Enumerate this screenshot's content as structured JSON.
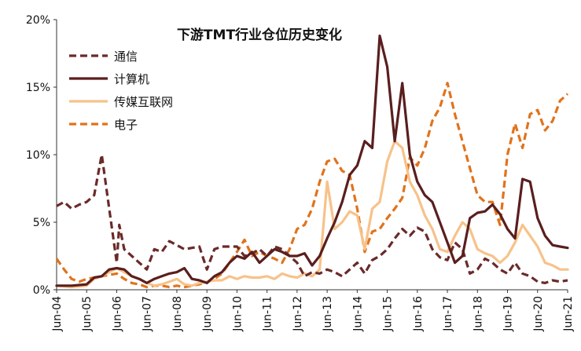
{
  "chart_data": {
    "type": "line",
    "title": "下游TMT行业仓位历史变化",
    "xlabel": "",
    "ylabel": "",
    "x_start": "2004-06",
    "x_end": "2021-06",
    "x_ticks": [
      "Jun-04",
      "Jun-05",
      "Jun-06",
      "Jun-07",
      "Jun-08",
      "Jun-09",
      "Jun-10",
      "Jun-11",
      "Jun-12",
      "Jun-13",
      "Jun-14",
      "Jun-15",
      "Jun-16",
      "Jun-17",
      "Jun-18",
      "Jun-19",
      "Jun-20",
      "Jun-21"
    ],
    "y_ticks": [
      "0%",
      "5%",
      "10%",
      "15%",
      "20%"
    ],
    "ylim": [
      0,
      20
    ],
    "legend_position": "top-left",
    "grid": false,
    "series": [
      {
        "name": "通信",
        "style": "dashed",
        "color": "#6b2a2a",
        "points": [
          [
            "2004-06",
            6.2
          ],
          [
            "2004-09",
            6.5
          ],
          [
            "2004-12",
            6.0
          ],
          [
            "2005-03",
            6.3
          ],
          [
            "2005-06",
            6.5
          ],
          [
            "2005-09",
            7.0
          ],
          [
            "2005-12",
            10.0
          ],
          [
            "2006-03",
            6.0
          ],
          [
            "2006-06",
            2.0
          ],
          [
            "2006-07",
            4.8
          ],
          [
            "2006-09",
            3.0
          ],
          [
            "2006-12",
            2.5
          ],
          [
            "2007-03",
            2.0
          ],
          [
            "2007-06",
            1.5
          ],
          [
            "2007-09",
            3.0
          ],
          [
            "2007-12",
            2.8
          ],
          [
            "2008-03",
            3.6
          ],
          [
            "2008-06",
            3.3
          ],
          [
            "2008-09",
            3.0
          ],
          [
            "2008-12",
            3.1
          ],
          [
            "2009-03",
            3.2
          ],
          [
            "2009-06",
            1.5
          ],
          [
            "2009-09",
            3.0
          ],
          [
            "2009-12",
            3.2
          ],
          [
            "2010-03",
            3.2
          ],
          [
            "2010-06",
            3.2
          ],
          [
            "2010-09",
            2.5
          ],
          [
            "2010-12",
            2.7
          ],
          [
            "2011-03",
            3.0
          ],
          [
            "2011-06",
            2.5
          ],
          [
            "2011-09",
            3.2
          ],
          [
            "2011-12",
            3.0
          ],
          [
            "2012-03",
            2.5
          ],
          [
            "2012-06",
            2.0
          ],
          [
            "2012-09",
            1.0
          ],
          [
            "2012-12",
            1.3
          ],
          [
            "2013-03",
            1.2
          ],
          [
            "2013-06",
            1.5
          ],
          [
            "2013-09",
            1.3
          ],
          [
            "2013-12",
            1.0
          ],
          [
            "2014-03",
            1.5
          ],
          [
            "2014-06",
            2.0
          ],
          [
            "2014-09",
            1.2
          ],
          [
            "2014-12",
            2.2
          ],
          [
            "2015-03",
            2.5
          ],
          [
            "2015-06",
            3.0
          ],
          [
            "2015-09",
            3.8
          ],
          [
            "2015-12",
            4.5
          ],
          [
            "2016-03",
            4.0
          ],
          [
            "2016-06",
            4.6
          ],
          [
            "2016-09",
            4.3
          ],
          [
            "2016-12",
            3.0
          ],
          [
            "2017-03",
            2.4
          ],
          [
            "2017-06",
            2.2
          ],
          [
            "2017-09",
            3.5
          ],
          [
            "2017-12",
            3.0
          ],
          [
            "2018-03",
            1.2
          ],
          [
            "2018-06",
            1.5
          ],
          [
            "2018-09",
            2.3
          ],
          [
            "2018-12",
            2.0
          ],
          [
            "2019-03",
            1.5
          ],
          [
            "2019-06",
            1.2
          ],
          [
            "2019-09",
            2.0
          ],
          [
            "2019-12",
            1.2
          ],
          [
            "2020-03",
            1.0
          ],
          [
            "2020-06",
            0.6
          ],
          [
            "2020-09",
            0.5
          ],
          [
            "2020-12",
            0.7
          ],
          [
            "2021-03",
            0.6
          ],
          [
            "2021-06",
            0.7
          ]
        ]
      },
      {
        "name": "计算机",
        "style": "solid",
        "color": "#5a1e1e",
        "points": [
          [
            "2004-06",
            0.3
          ],
          [
            "2004-12",
            0.3
          ],
          [
            "2005-06",
            0.4
          ],
          [
            "2005-09",
            0.9
          ],
          [
            "2005-12",
            1.0
          ],
          [
            "2006-03",
            1.5
          ],
          [
            "2006-06",
            1.6
          ],
          [
            "2006-09",
            1.5
          ],
          [
            "2006-12",
            1.0
          ],
          [
            "2007-03",
            0.8
          ],
          [
            "2007-06",
            0.5
          ],
          [
            "2007-09",
            0.8
          ],
          [
            "2007-12",
            1.0
          ],
          [
            "2008-03",
            1.2
          ],
          [
            "2008-06",
            1.3
          ],
          [
            "2008-09",
            1.6
          ],
          [
            "2008-12",
            0.8
          ],
          [
            "2009-03",
            0.7
          ],
          [
            "2009-06",
            0.5
          ],
          [
            "2009-09",
            1.0
          ],
          [
            "2009-12",
            1.3
          ],
          [
            "2010-03",
            2.0
          ],
          [
            "2010-06",
            2.5
          ],
          [
            "2010-09",
            2.3
          ],
          [
            "2010-12",
            2.8
          ],
          [
            "2011-03",
            2.0
          ],
          [
            "2011-06",
            2.5
          ],
          [
            "2011-09",
            3.0
          ],
          [
            "2011-12",
            2.8
          ],
          [
            "2012-03",
            2.5
          ],
          [
            "2012-06",
            2.5
          ],
          [
            "2012-09",
            2.7
          ],
          [
            "2012-12",
            1.8
          ],
          [
            "2013-03",
            2.5
          ],
          [
            "2013-06",
            3.8
          ],
          [
            "2013-09",
            5.0
          ],
          [
            "2013-12",
            6.5
          ],
          [
            "2014-03",
            8.5
          ],
          [
            "2014-06",
            9.2
          ],
          [
            "2014-09",
            11.0
          ],
          [
            "2014-12",
            10.5
          ],
          [
            "2015-03",
            18.8
          ],
          [
            "2015-06",
            16.5
          ],
          [
            "2015-09",
            11.0
          ],
          [
            "2015-12",
            15.3
          ],
          [
            "2016-03",
            10.0
          ],
          [
            "2016-06",
            8.0
          ],
          [
            "2016-09",
            7.0
          ],
          [
            "2016-12",
            6.5
          ],
          [
            "2017-03",
            5.0
          ],
          [
            "2017-06",
            3.5
          ],
          [
            "2017-09",
            2.0
          ],
          [
            "2017-12",
            2.5
          ],
          [
            "2018-03",
            5.3
          ],
          [
            "2018-06",
            5.7
          ],
          [
            "2018-09",
            5.8
          ],
          [
            "2018-12",
            6.3
          ],
          [
            "2019-03",
            5.6
          ],
          [
            "2019-06",
            4.5
          ],
          [
            "2019-09",
            3.8
          ],
          [
            "2019-12",
            8.2
          ],
          [
            "2020-03",
            8.0
          ],
          [
            "2020-06",
            5.3
          ],
          [
            "2020-09",
            4.0
          ],
          [
            "2020-12",
            3.3
          ],
          [
            "2021-03",
            3.2
          ],
          [
            "2021-06",
            3.1
          ]
        ]
      },
      {
        "name": "传媒互联网",
        "style": "solid",
        "color": "#f7c28a",
        "points": [
          [
            "2004-06",
            0.3
          ],
          [
            "2004-12",
            0.2
          ],
          [
            "2005-06",
            0.3
          ],
          [
            "2005-09",
            0.8
          ],
          [
            "2005-12",
            1.0
          ],
          [
            "2006-03",
            1.3
          ],
          [
            "2006-06",
            1.6
          ],
          [
            "2006-09",
            1.3
          ],
          [
            "2006-12",
            1.0
          ],
          [
            "2007-03",
            0.8
          ],
          [
            "2007-06",
            0.5
          ],
          [
            "2007-09",
            0.3
          ],
          [
            "2007-12",
            0.4
          ],
          [
            "2008-03",
            0.6
          ],
          [
            "2008-06",
            0.8
          ],
          [
            "2008-09",
            0.4
          ],
          [
            "2008-12",
            0.3
          ],
          [
            "2009-03",
            0.5
          ],
          [
            "2009-06",
            0.6
          ],
          [
            "2009-09",
            0.7
          ],
          [
            "2009-12",
            0.7
          ],
          [
            "2010-03",
            1.0
          ],
          [
            "2010-06",
            0.8
          ],
          [
            "2010-09",
            1.0
          ],
          [
            "2010-12",
            0.9
          ],
          [
            "2011-03",
            0.9
          ],
          [
            "2011-06",
            1.0
          ],
          [
            "2011-09",
            0.8
          ],
          [
            "2011-12",
            1.2
          ],
          [
            "2012-03",
            1.0
          ],
          [
            "2012-06",
            0.9
          ],
          [
            "2012-09",
            1.2
          ],
          [
            "2012-12",
            1.0
          ],
          [
            "2013-03",
            1.5
          ],
          [
            "2013-06",
            8.0
          ],
          [
            "2013-09",
            4.5
          ],
          [
            "2013-12",
            5.0
          ],
          [
            "2014-03",
            5.8
          ],
          [
            "2014-06",
            5.5
          ],
          [
            "2014-09",
            3.0
          ],
          [
            "2014-12",
            6.0
          ],
          [
            "2015-03",
            6.5
          ],
          [
            "2015-06",
            9.5
          ],
          [
            "2015-09",
            11.0
          ],
          [
            "2015-12",
            10.5
          ],
          [
            "2016-03",
            8.0
          ],
          [
            "2016-06",
            7.0
          ],
          [
            "2016-09",
            5.5
          ],
          [
            "2016-12",
            4.5
          ],
          [
            "2017-03",
            3.0
          ],
          [
            "2017-06",
            2.8
          ],
          [
            "2017-09",
            4.0
          ],
          [
            "2017-12",
            5.0
          ],
          [
            "2018-03",
            4.5
          ],
          [
            "2018-06",
            3.0
          ],
          [
            "2018-09",
            2.7
          ],
          [
            "2018-12",
            2.5
          ],
          [
            "2019-03",
            2.0
          ],
          [
            "2019-06",
            2.5
          ],
          [
            "2019-09",
            3.5
          ],
          [
            "2019-12",
            4.8
          ],
          [
            "2020-03",
            4.0
          ],
          [
            "2020-06",
            3.2
          ],
          [
            "2020-09",
            2.0
          ],
          [
            "2020-12",
            1.8
          ],
          [
            "2021-03",
            1.5
          ],
          [
            "2021-06",
            1.5
          ]
        ]
      },
      {
        "name": "电子",
        "style": "dashed",
        "color": "#e0731c",
        "points": [
          [
            "2004-06",
            2.3
          ],
          [
            "2004-09",
            1.5
          ],
          [
            "2004-12",
            0.8
          ],
          [
            "2005-03",
            0.6
          ],
          [
            "2005-06",
            0.8
          ],
          [
            "2005-09",
            0.9
          ],
          [
            "2005-12",
            1.0
          ],
          [
            "2006-03",
            1.1
          ],
          [
            "2006-06",
            1.2
          ],
          [
            "2006-09",
            0.8
          ],
          [
            "2006-12",
            0.5
          ],
          [
            "2007-03",
            0.4
          ],
          [
            "2007-06",
            0.2
          ],
          [
            "2007-09",
            0.3
          ],
          [
            "2007-12",
            0.3
          ],
          [
            "2008-03",
            0.2
          ],
          [
            "2008-06",
            0.3
          ],
          [
            "2008-09",
            0.2
          ],
          [
            "2008-12",
            0.3
          ],
          [
            "2009-03",
            0.4
          ],
          [
            "2009-06",
            0.6
          ],
          [
            "2009-09",
            0.8
          ],
          [
            "2009-12",
            1.2
          ],
          [
            "2010-03",
            2.0
          ],
          [
            "2010-06",
            2.8
          ],
          [
            "2010-09",
            3.7
          ],
          [
            "2010-12",
            2.5
          ],
          [
            "2011-03",
            2.8
          ],
          [
            "2011-06",
            2.5
          ],
          [
            "2011-09",
            2.3
          ],
          [
            "2011-12",
            2.0
          ],
          [
            "2012-03",
            3.0
          ],
          [
            "2012-06",
            4.5
          ],
          [
            "2012-09",
            4.8
          ],
          [
            "2012-12",
            6.0
          ],
          [
            "2013-03",
            8.0
          ],
          [
            "2013-06",
            9.5
          ],
          [
            "2013-09",
            9.7
          ],
          [
            "2013-12",
            8.8
          ],
          [
            "2014-03",
            8.5
          ],
          [
            "2014-06",
            6.0
          ],
          [
            "2014-09",
            2.8
          ],
          [
            "2014-12",
            4.3
          ],
          [
            "2015-03",
            4.5
          ],
          [
            "2015-06",
            5.3
          ],
          [
            "2015-09",
            6.0
          ],
          [
            "2015-12",
            6.8
          ],
          [
            "2016-03",
            9.8
          ],
          [
            "2016-06",
            9.2
          ],
          [
            "2016-09",
            10.5
          ],
          [
            "2016-12",
            12.5
          ],
          [
            "2017-03",
            13.5
          ],
          [
            "2017-06",
            15.3
          ],
          [
            "2017-09",
            13.0
          ],
          [
            "2017-12",
            11.0
          ],
          [
            "2018-03",
            9.0
          ],
          [
            "2018-06",
            7.0
          ],
          [
            "2018-09",
            6.5
          ],
          [
            "2018-12",
            6.5
          ],
          [
            "2019-03",
            4.8
          ],
          [
            "2019-06",
            10.0
          ],
          [
            "2019-09",
            12.3
          ],
          [
            "2019-12",
            10.5
          ],
          [
            "2020-03",
            13.0
          ],
          [
            "2020-06",
            13.3
          ],
          [
            "2020-09",
            11.8
          ],
          [
            "2020-12",
            12.5
          ],
          [
            "2021-03",
            14.0
          ],
          [
            "2021-06",
            14.5
          ]
        ]
      }
    ]
  }
}
